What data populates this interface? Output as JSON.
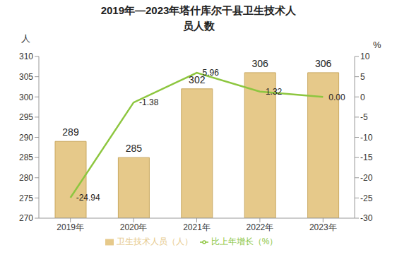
{
  "chart_data": {
    "type": "bar_line",
    "title": "2019年—2023年塔什库尔干县卫生技术人员人数",
    "ylabel": "人",
    "y2label": "%",
    "categories": [
      "2019年",
      "2020年",
      "2021年",
      "2022年",
      "2023年"
    ],
    "series": [
      {
        "name": "卫生技术人员（人）",
        "type": "bar",
        "color": "#e6c98a",
        "values": [
          289,
          285,
          302,
          306,
          306
        ]
      },
      {
        "name": "比上年增长（%）",
        "type": "line",
        "axis": "y2",
        "color": "#8dc63f",
        "marker": "none",
        "values": [
          -24.94,
          -1.38,
          5.96,
          1.32,
          0.0
        ],
        "value_labels": [
          "-24.94",
          "-1.38",
          "5.96",
          "1.32",
          "0.00"
        ]
      }
    ],
    "ylim": [
      270,
      310
    ],
    "yticks": [
      270,
      275,
      280,
      285,
      290,
      295,
      300,
      305,
      310
    ],
    "y2lim": [
      -30,
      10
    ],
    "y2ticks": [
      -30,
      -25,
      -20,
      -15,
      -10,
      -5,
      0,
      5,
      10
    ],
    "grid": false,
    "legend": "bottom",
    "data_labels": true
  }
}
